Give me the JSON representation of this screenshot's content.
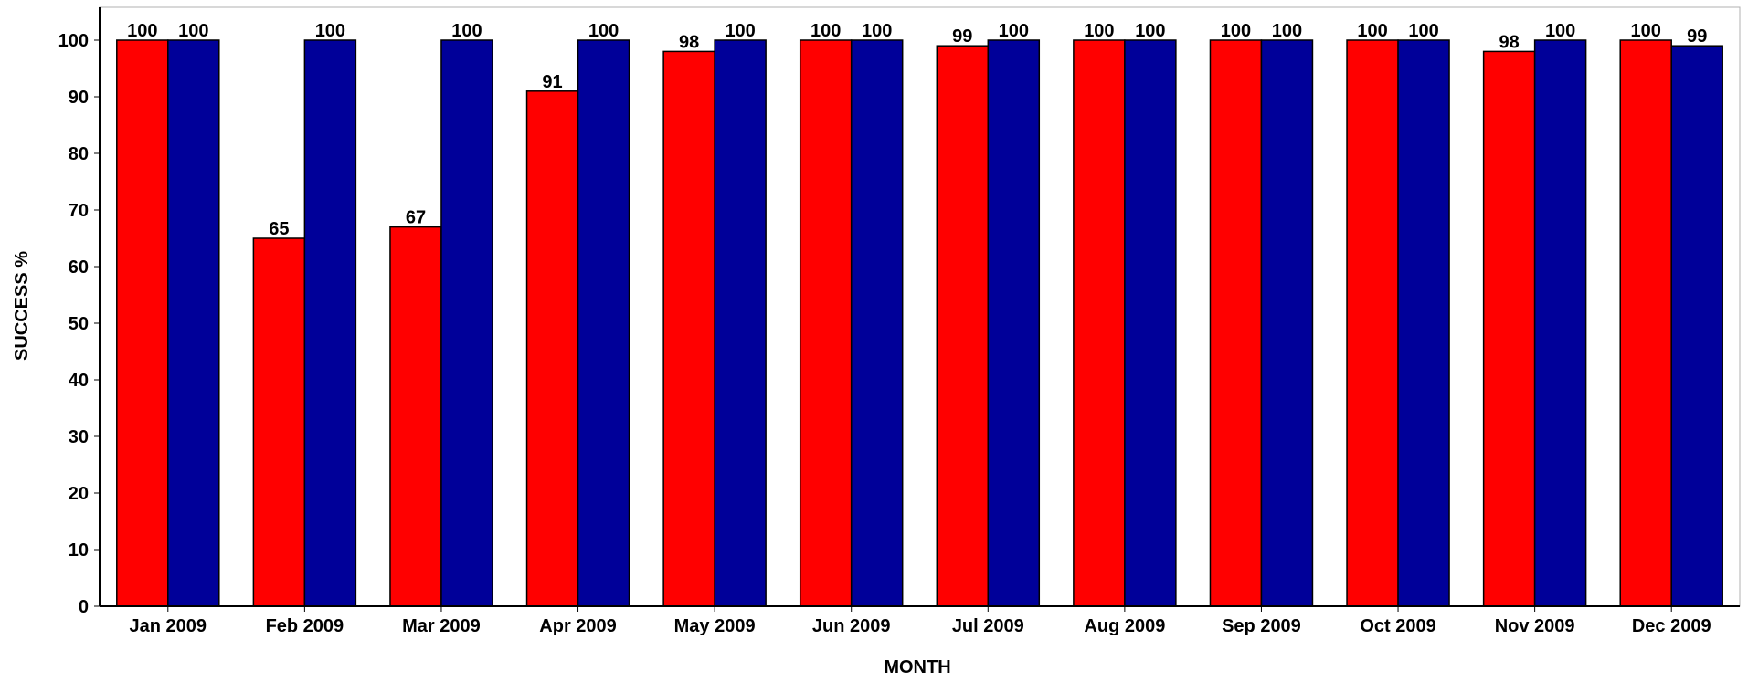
{
  "chart_data": {
    "type": "bar",
    "title": "",
    "xlabel": "MONTH",
    "ylabel": "SUCCESS %",
    "ylim": [
      0,
      100
    ],
    "yticks": [
      0,
      10,
      20,
      30,
      40,
      50,
      60,
      70,
      80,
      90,
      100
    ],
    "grid": false,
    "legend": "none",
    "categories": [
      "Jan 2009",
      "Feb 2009",
      "Mar 2009",
      "Apr 2009",
      "May 2009",
      "Jun 2009",
      "Jul 2009",
      "Aug 2009",
      "Sep 2009",
      "Oct 2009",
      "Nov 2009",
      "Dec 2009"
    ],
    "series": [
      {
        "color": "#ff0000",
        "values": [
          100,
          65,
          67,
          91,
          98,
          100,
          99,
          100,
          100,
          100,
          98,
          100
        ]
      },
      {
        "color": "#000099",
        "values": [
          100,
          100,
          100,
          100,
          100,
          100,
          100,
          100,
          100,
          100,
          100,
          99
        ]
      }
    ]
  }
}
